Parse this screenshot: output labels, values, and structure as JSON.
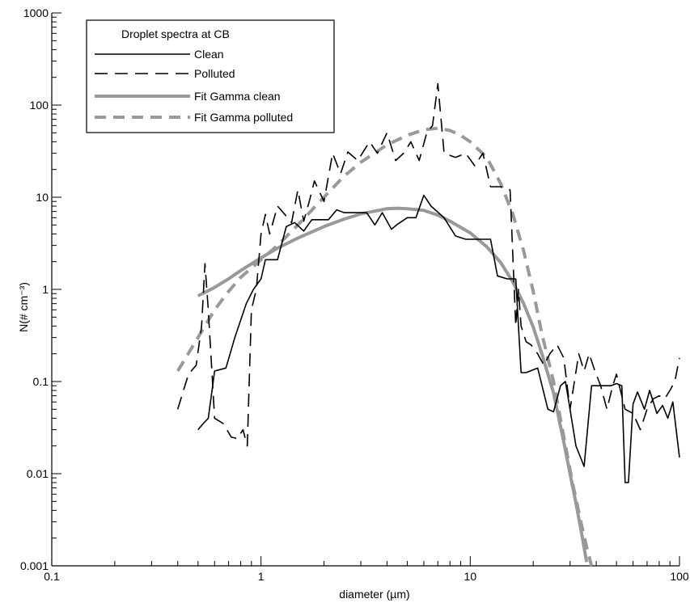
{
  "chart_data": {
    "type": "line",
    "title": "",
    "xlabel": "diameter (µm)",
    "ylabel": "N(# cm⁻³)",
    "xscale": "log",
    "yscale": "log",
    "xlim": [
      0.1,
      100
    ],
    "ylim": [
      0.001,
      1000
    ],
    "x_ticks": [
      "0.1",
      "1",
      "10",
      "100"
    ],
    "y_ticks": [
      "0.001",
      "0.01",
      "0.1",
      "1",
      "10",
      "100",
      "1000"
    ],
    "grid": false,
    "legend": {
      "title": "Droplet spectra at CB",
      "placement": "top-left",
      "entries": [
        "Clean",
        "Polluted",
        "Fit Gamma clean",
        "Fit Gamma polluted"
      ]
    },
    "series": [
      {
        "name": "Clean",
        "color": "#000000",
        "style": "solid",
        "x": [
          0.5,
          0.53,
          0.56,
          0.6,
          0.68,
          0.75,
          0.85,
          0.92,
          1.0,
          1.05,
          1.12,
          1.2,
          1.32,
          1.45,
          1.6,
          1.75,
          1.9,
          2.1,
          2.3,
          2.5,
          2.8,
          3.2,
          3.5,
          3.8,
          4.2,
          4.5,
          5.0,
          5.5,
          6.0,
          6.5,
          7.5,
          8.5,
          9.5,
          10.5,
          11.5,
          12.5,
          13.5,
          15.0,
          16.5,
          17.5,
          18.5,
          21,
          23.5,
          25,
          27,
          28.5,
          30,
          32,
          35,
          38,
          40,
          43,
          47,
          50,
          53,
          55,
          57,
          60,
          63,
          68,
          72,
          78,
          83,
          88,
          93,
          100
        ],
        "y": [
          0.03,
          0.035,
          0.04,
          0.13,
          0.14,
          0.3,
          0.7,
          1.0,
          1.3,
          2.1,
          2.1,
          2.1,
          4.8,
          5.3,
          4.3,
          5.7,
          5.7,
          5.7,
          7.3,
          6.8,
          6.8,
          6.8,
          5.0,
          6.8,
          4.5,
          5.1,
          6.0,
          6.0,
          10.5,
          8.0,
          6.0,
          3.8,
          3.5,
          3.5,
          3.5,
          3.5,
          1.4,
          1.3,
          1.3,
          0.125,
          0.125,
          0.14,
          0.05,
          0.047,
          0.09,
          0.1,
          0.05,
          0.02,
          0.012,
          0.09,
          0.09,
          0.09,
          0.09,
          0.095,
          0.09,
          0.008,
          0.008,
          0.057,
          0.077,
          0.05,
          0.08,
          0.045,
          0.055,
          0.04,
          0.06,
          0.015
        ]
      },
      {
        "name": "Polluted",
        "color": "#000000",
        "style": "dashed",
        "x": [
          0.4,
          0.45,
          0.49,
          0.52,
          0.54,
          0.56,
          0.6,
          0.66,
          0.72,
          0.77,
          0.82,
          0.86,
          0.9,
          0.95,
          1.0,
          1.05,
          1.1,
          1.2,
          1.3,
          1.4,
          1.5,
          1.6,
          1.7,
          1.8,
          2.0,
          2.2,
          2.4,
          2.6,
          2.9,
          3.3,
          3.6,
          4.0,
          4.4,
          4.8,
          5.2,
          5.7,
          6.2,
          6.6,
          7.0,
          7.5,
          8.5,
          9.5,
          10.5,
          11.5,
          12.5,
          14,
          15.5,
          16.5,
          17.0,
          17.5,
          18.5,
          19.5,
          21,
          22.5,
          24,
          26,
          28,
          30,
          33,
          35,
          37,
          39,
          42,
          45,
          48,
          50,
          55,
          60,
          65,
          70,
          75,
          80,
          85,
          90,
          95,
          100
        ],
        "y": [
          0.05,
          0.12,
          0.15,
          0.4,
          1.9,
          0.6,
          0.04,
          0.035,
          0.025,
          0.024,
          0.03,
          0.02,
          0.6,
          1.0,
          4.0,
          6.5,
          4.0,
          8.0,
          6.5,
          5.3,
          12.0,
          5.5,
          9.0,
          15.0,
          9.0,
          30.0,
          18.0,
          31.0,
          25.0,
          40.0,
          30.0,
          50.0,
          25.0,
          30.0,
          40.0,
          25.0,
          50.0,
          60.0,
          170.0,
          30.0,
          27.0,
          30.0,
          22.0,
          30.0,
          13.0,
          13.0,
          12.0,
          0.4,
          1.0,
          0.4,
          0.27,
          0.25,
          0.2,
          0.15,
          0.2,
          0.25,
          0.18,
          0.05,
          0.2,
          0.13,
          0.2,
          0.14,
          0.09,
          0.05,
          0.09,
          0.12,
          0.05,
          0.045,
          0.03,
          0.05,
          0.065,
          0.07,
          0.065,
          0.08,
          0.1,
          0.18
        ]
      },
      {
        "name": "Fit Gamma clean",
        "color": "#999999",
        "style": "solid",
        "x": [
          0.5,
          0.6,
          0.7,
          0.8,
          1.0,
          1.2,
          1.5,
          2.0,
          2.5,
          3.0,
          4.0,
          4.5,
          5.0,
          6.0,
          7.0,
          8.0,
          10.0,
          12.0,
          14.0,
          16.0,
          18.0,
          20.0,
          22.0,
          25.0,
          28.0,
          30.0,
          32.0,
          34.0,
          36.0
        ],
        "y": [
          0.85,
          1.05,
          1.3,
          1.6,
          2.2,
          2.8,
          3.6,
          4.8,
          5.8,
          6.6,
          7.5,
          7.6,
          7.5,
          7.2,
          6.4,
          5.5,
          4.1,
          2.9,
          1.95,
          1.2,
          0.7,
          0.39,
          0.2,
          0.075,
          0.022,
          0.01,
          0.0048,
          0.0023,
          0.0011
        ]
      },
      {
        "name": "Fit Gamma polluted",
        "color": "#999999",
        "style": "dashed",
        "x": [
          0.4,
          0.5,
          0.6,
          0.7,
          0.8,
          1.0,
          1.2,
          1.5,
          2.0,
          2.5,
          3.0,
          4.0,
          5.0,
          6.0,
          7.0,
          8.0,
          9.0,
          10.0,
          12.0,
          14.0,
          16.0,
          18.0,
          20.0,
          22.0,
          25.0,
          28.0,
          31.0,
          34.0,
          36.0,
          38.0
        ],
        "y": [
          0.13,
          0.3,
          0.6,
          0.95,
          1.35,
          2.1,
          3.0,
          5.0,
          10.0,
          17.0,
          24.0,
          37.0,
          47.0,
          54.0,
          56.0,
          53.0,
          47.0,
          40.0,
          27.0,
          14.0,
          6.5,
          2.6,
          0.95,
          0.33,
          0.1,
          0.025,
          0.0075,
          0.0028,
          0.0016,
          0.001
        ]
      }
    ]
  }
}
